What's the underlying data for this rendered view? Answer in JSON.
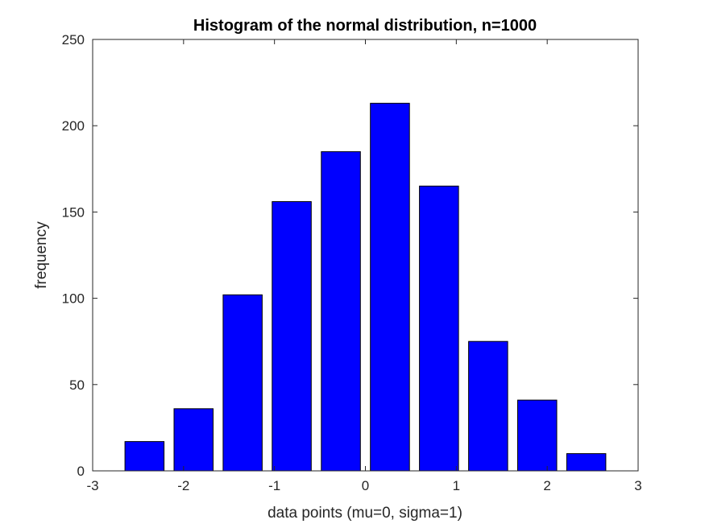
{
  "chart_data": {
    "type": "bar",
    "title": "Histogram of the normal distribution, n=1000",
    "xlabel": "data points (mu=0, sigma=1)",
    "ylabel": "frequency",
    "xlim": [
      -3,
      3
    ],
    "ylim": [
      0,
      250
    ],
    "x_ticks": [
      "-3",
      "-2",
      "-1",
      "0",
      "1",
      "2",
      "3"
    ],
    "y_ticks": [
      "0",
      "50",
      "100",
      "150",
      "200",
      "250"
    ],
    "bin_centers": [
      -2.43,
      -1.89,
      -1.35,
      -0.81,
      -0.27,
      0.27,
      0.81,
      1.35,
      1.89,
      2.43
    ],
    "bar_width": 0.43,
    "values": [
      17,
      36,
      102,
      156,
      185,
      213,
      165,
      75,
      41,
      10
    ],
    "bar_color": "#0000FF",
    "grid": false,
    "legend": "none"
  }
}
